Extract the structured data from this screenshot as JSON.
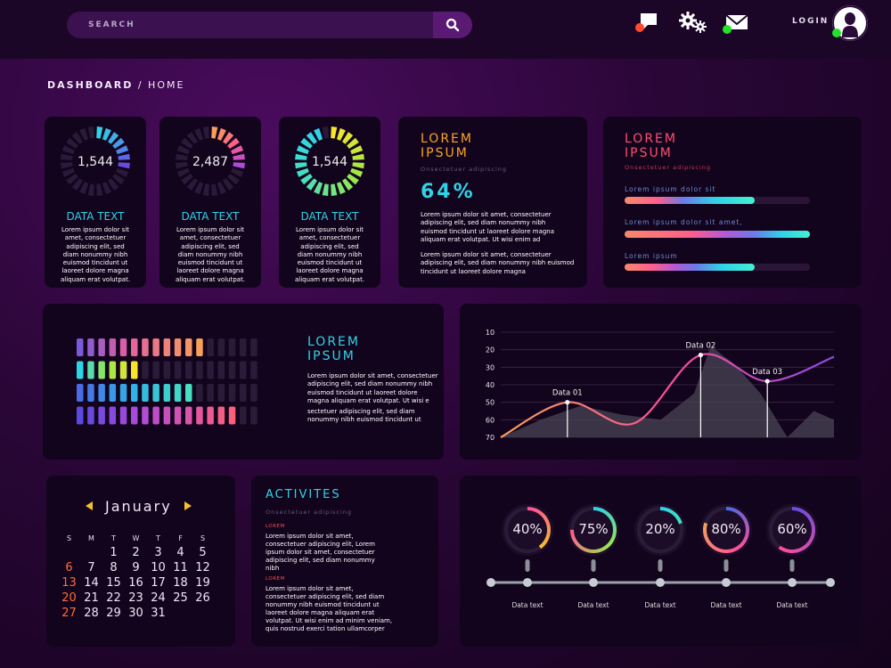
{
  "search": {
    "placeholder": "SEARCH"
  },
  "header": {
    "login_label": "LOGIN"
  },
  "breadcrumb": {
    "root": "DASHBOARD",
    "separator": "/",
    "current": "HOME"
  },
  "ring_cards": [
    {
      "value": "1,544",
      "label": "DATA TEXT",
      "body": [
        "Lorem ipsum dolor sit",
        "amet, consectetuer",
        "adipiscing elit, sed",
        "diam nonummy nibh",
        "euismod tincidunt ut",
        "laoreet dolore magna",
        "aliquam erat volutpat."
      ]
    },
    {
      "value": "2,487",
      "label": "DATA TEXT",
      "body": [
        "Lorem ipsum dolor sit",
        "amet, consectetuer",
        "adipiscing elit, sed",
        "diam nonummy nibh",
        "euismod tincidunt ut",
        "laoreet dolore magna",
        "aliquam erat volutpat."
      ]
    },
    {
      "value": "1,544",
      "label": "DATA TEXT",
      "body": [
        "Lorem ipsum dolor sit",
        "amet, consectetuer",
        "adipiscing elit, sed",
        "diam nonummy nibh",
        "euismod tincidunt ut",
        "laoreet dolore magna",
        "aliquam erat volutpat."
      ]
    }
  ],
  "stat_card": {
    "title_line1": "LOREM",
    "title_line2": "IPSUM",
    "subtitle": "Onsectetuer adipiscing",
    "percent": "64%",
    "body1": [
      "Lorem ipsum dolor sit amet, consectetuer",
      "adipiscing elit, sed diam nonummy nibh",
      "euismod tincidunt ut laoreet dolore magna",
      "aliquam erat volutpat. Ut wisi enim ad"
    ],
    "body2": [
      "Lorem ipsum dolor sit amet, consectetuer",
      "adipiscing elit, sed diam nonummy nibh euismod",
      "tincidunt ut laoreet dolore magna"
    ]
  },
  "bars_card": {
    "title_line1": "LOREM",
    "title_line2": "IPSUM",
    "subtitle": "Onsectetuer adipiscing",
    "bars": [
      {
        "label": "Lorem ipsum dolor sit",
        "progress": 0.7
      },
      {
        "label": "Lorem ipsum dolor sit amet,",
        "progress": 1.0
      },
      {
        "label": "Lorem ipsum",
        "progress": 0.7
      }
    ]
  },
  "equalizer_card": {
    "title_line1": "LOREM",
    "title_line2": "IPSUM",
    "body1": [
      "Lorem ipsum dolor sit amet, consectetuer",
      "adipiscing elit, sed diam nonummy nibh",
      "euismod tincidunt ut laoreet dolore",
      "magna aliquam erat volutpat. Ut wisi e"
    ],
    "body2": [
      "sectetuer adipiscing elit, sed diam",
      "nonummy nibh euismod tincidunt ut"
    ],
    "rows": [
      {
        "filled": 12,
        "total": 17
      },
      {
        "filled": 6,
        "total": 17
      },
      {
        "filled": 11,
        "total": 17
      },
      {
        "filled": 15,
        "total": 17
      }
    ]
  },
  "chart_data": {
    "type": "line",
    "title": "",
    "y_ticks": [
      10,
      20,
      30,
      40,
      50,
      60,
      70
    ],
    "ylim": [
      10,
      70
    ],
    "y_inverted": true,
    "grid": true,
    "series": [
      {
        "points": [
          [
            0,
            70
          ],
          [
            1,
            50
          ],
          [
            2,
            62
          ],
          [
            3,
            23
          ],
          [
            4,
            38
          ],
          [
            5,
            24
          ]
        ]
      }
    ],
    "annotations": [
      {
        "text": "Data 01",
        "x": 1,
        "y": 50
      },
      {
        "text": "Data 02",
        "x": 3,
        "y": 23
      },
      {
        "text": "Data 03",
        "x": 4,
        "y": 38
      }
    ]
  },
  "calendar": {
    "month": "January",
    "weekdays": [
      "S",
      "M",
      "T",
      "W",
      "T",
      "F",
      "S"
    ],
    "weeks": [
      [
        "",
        "",
        "1",
        "2",
        "3",
        "4",
        "5"
      ],
      [
        "6",
        "7",
        "8",
        "9",
        "10",
        "11",
        "12"
      ],
      [
        "13",
        "14",
        "15",
        "16",
        "17",
        "18",
        "19"
      ],
      [
        "20",
        "21",
        "22",
        "23",
        "24",
        "25",
        "26"
      ],
      [
        "27",
        "28",
        "29",
        "30",
        "31",
        "",
        ""
      ]
    ]
  },
  "activities": {
    "title": "ACTIVITES",
    "subtitle": "Onsectetuer adipiscing",
    "items": [
      {
        "tag": "LOREM",
        "lines": [
          "Lorem ipsum dolor sit amet,",
          "consectetuer adipiscing elit, Lorem",
          "ipsum dolor sit amet, consectetuer",
          "adipiscing elit, sed diam nonummy",
          "nibh"
        ]
      },
      {
        "tag": "LOREM",
        "lines": [
          "Lorem ipsum dolor sit amet,",
          "consectetuer adipiscing elit, sed diam",
          "nonummy nibh euismod tincidunt ut",
          "laoreet dolore magna aliquam erat",
          "volutpat. Ut wisi enim ad minim veniam,",
          "quis nostrud exerci tation ullamcorper"
        ]
      }
    ]
  },
  "timeline": {
    "items": [
      {
        "percent": "40%",
        "value": 0.4,
        "label": "Data text"
      },
      {
        "percent": "75%",
        "value": 0.75,
        "label": "Data text"
      },
      {
        "percent": "20%",
        "value": 0.2,
        "label": "Data text"
      },
      {
        "percent": "80%",
        "value": 0.8,
        "label": "Data text"
      },
      {
        "percent": "60%",
        "value": 0.6,
        "label": "Data text"
      }
    ]
  },
  "icons": [
    "search-icon",
    "chat-icon",
    "gears-icon",
    "mail-icon",
    "user-avatar-icon",
    "arrow-left-icon",
    "arrow-right-icon"
  ],
  "colors": {
    "accent_cyan": "#2fd3e6",
    "accent_orange": "#f6a623",
    "accent_pink": "#ff4f7b",
    "panel": "#13041d"
  }
}
